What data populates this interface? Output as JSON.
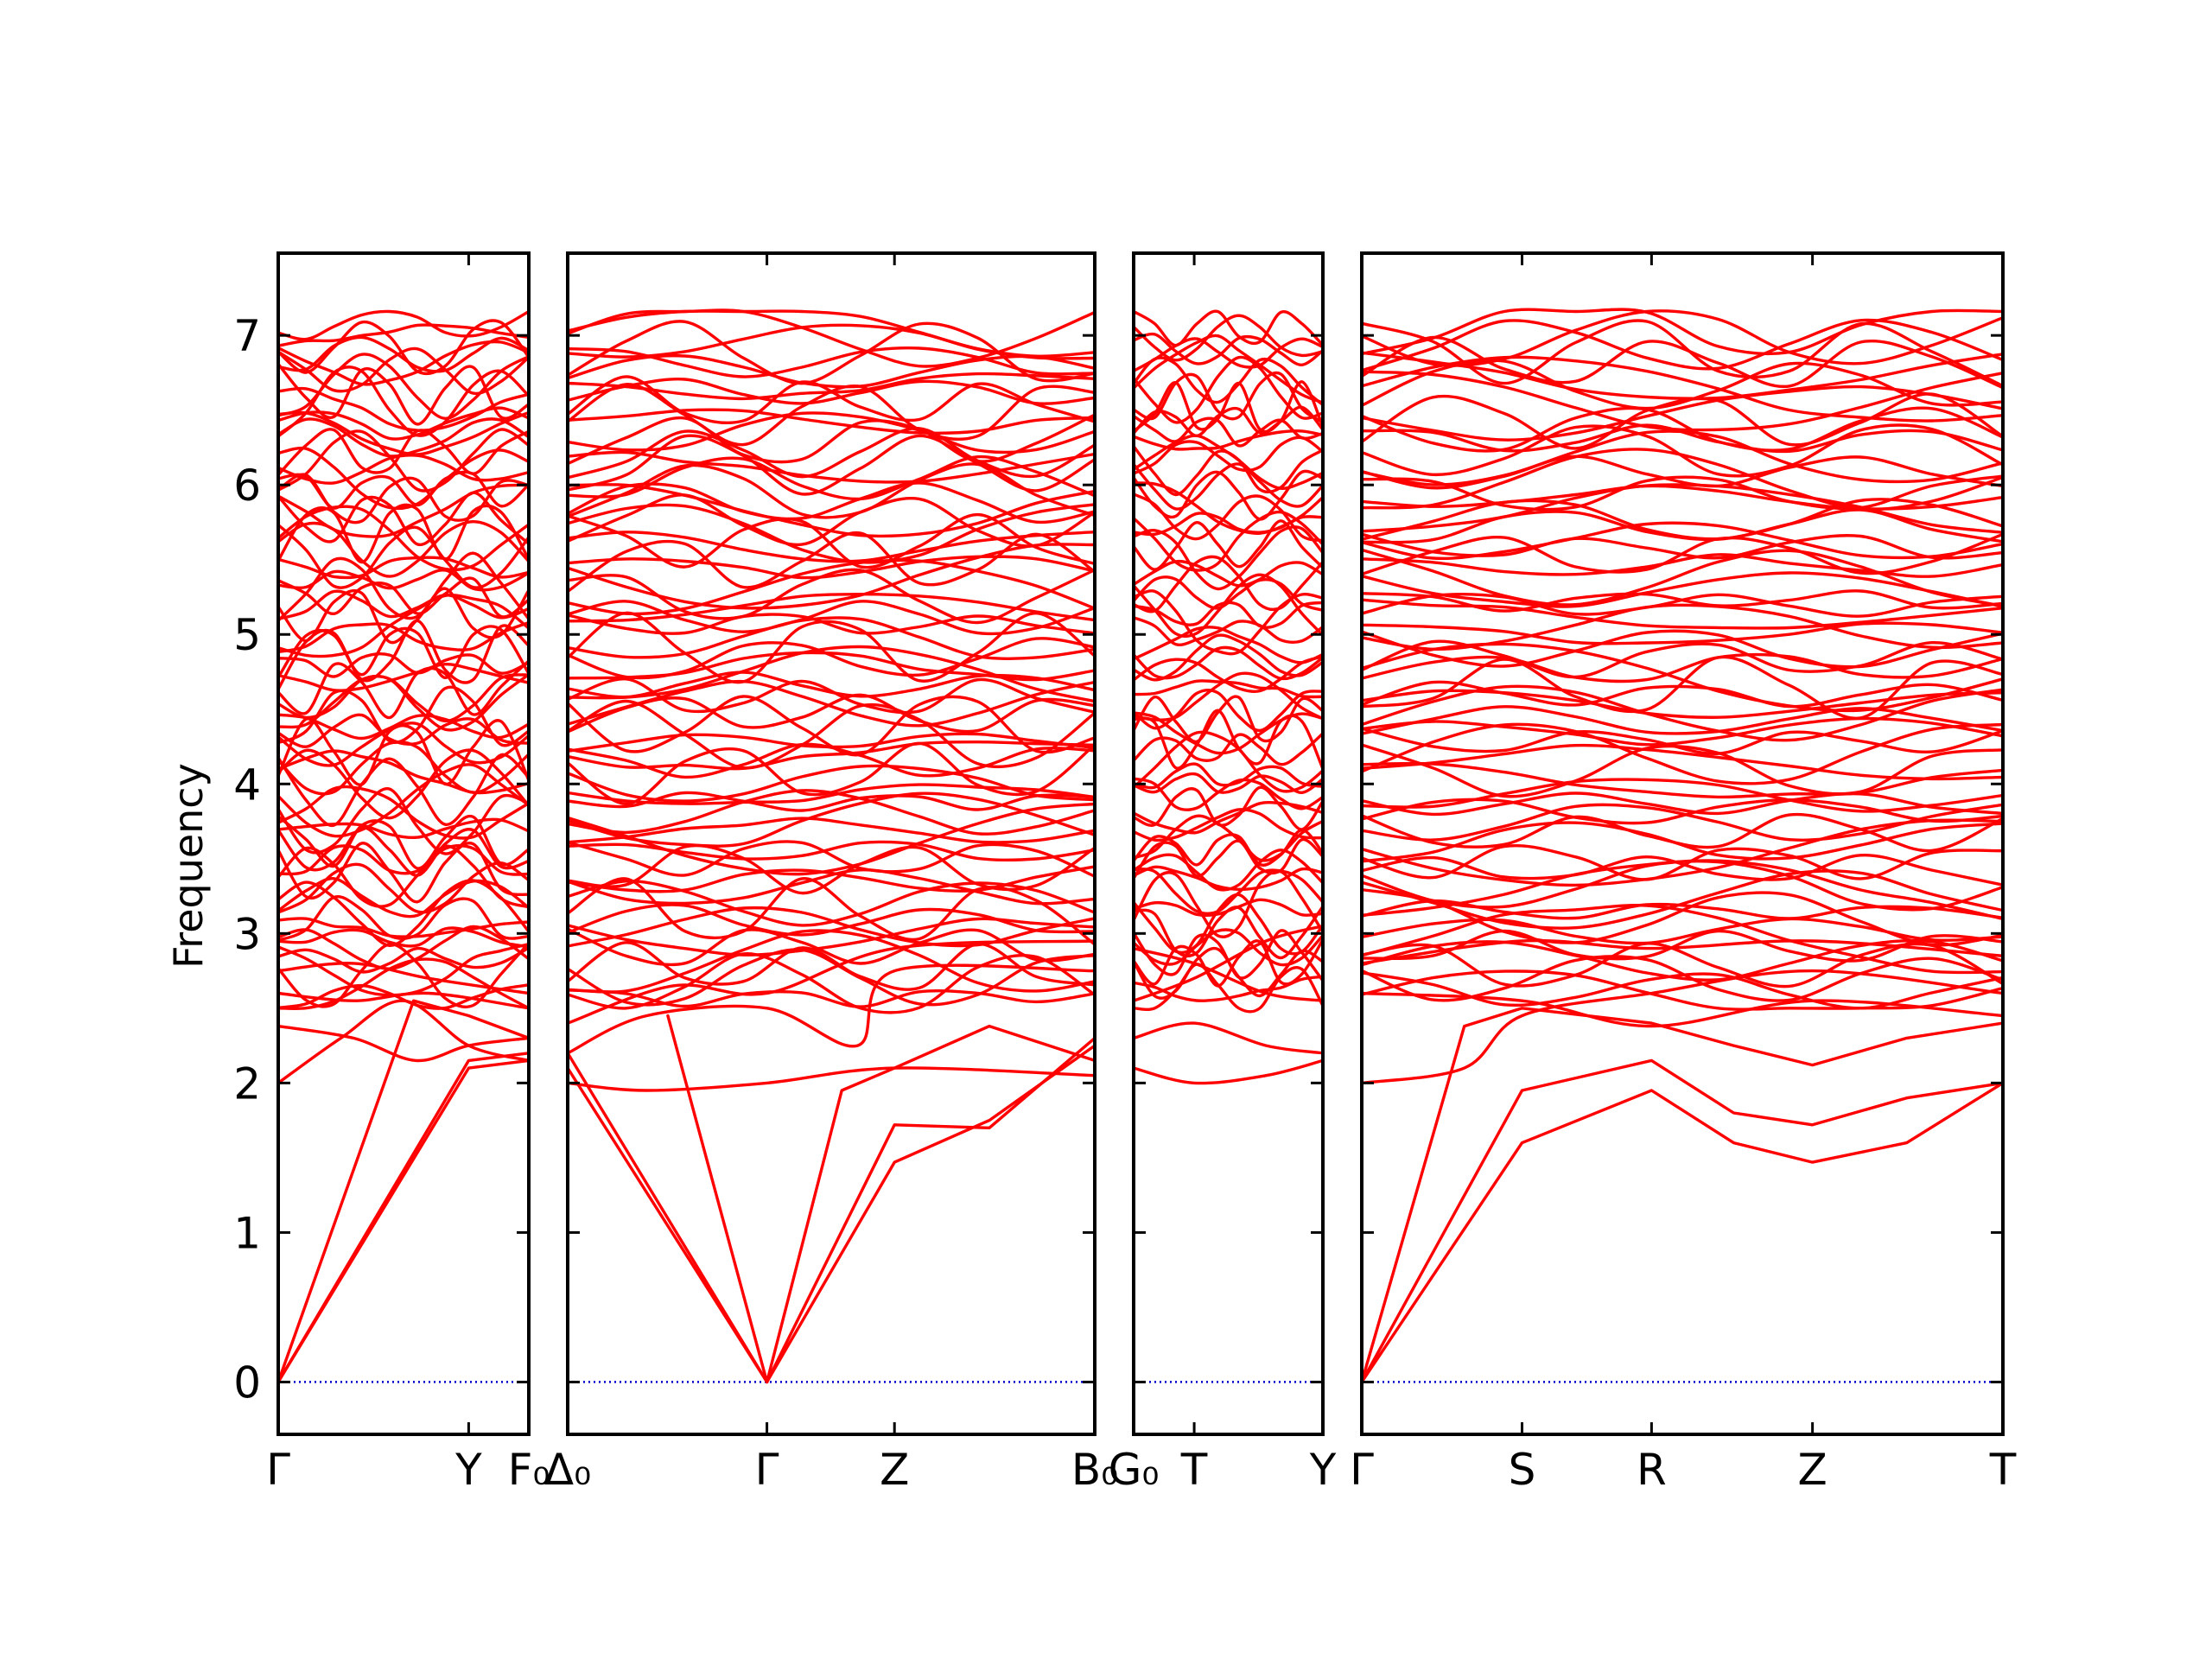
{
  "chart_data": {
    "type": "line",
    "title": "",
    "ylabel": "Frequency",
    "ylim": [
      -0.35,
      7.55
    ],
    "yticks": [
      "0",
      "1",
      "2",
      "3",
      "4",
      "5",
      "6",
      "7"
    ],
    "band_color": "#ff0000",
    "zero_line_color": "#0000cc",
    "panels": [
      {
        "name": "panel-1",
        "x_ticks": [
          {
            "label": "Γ",
            "pos": 0
          },
          {
            "label": "Y",
            "pos": 0.76
          },
          {
            "label": "F₀",
            "pos": 1.0
          }
        ],
        "bands": [
          {
            "kind": "acoustic",
            "x": [
              0,
              0.76,
              1.0
            ],
            "y": [
              0,
              2.1,
              2.15
            ]
          },
          {
            "kind": "acoustic",
            "x": [
              0,
              0.76,
              1.0
            ],
            "y": [
              0,
              2.15,
              2.2
            ]
          },
          {
            "kind": "acoustic",
            "x": [
              0,
              0.54,
              0.76,
              1.0
            ],
            "y": [
              0,
              2.55,
              2.45,
              2.3
            ]
          },
          {
            "kind": "optical",
            "x": [
              0,
              0.25,
              0.5,
              0.76,
              1.0
            ],
            "y": [
              2.0,
              2.3,
              2.55,
              2.25,
              2.15
            ]
          },
          {
            "kind": "optical",
            "x": [
              0,
              0.3,
              0.55,
              0.76,
              1.0
            ],
            "y": [
              2.38,
              2.3,
              2.15,
              2.25,
              2.3
            ]
          },
          {
            "kind": "optical",
            "x": [
              0,
              0.3,
              0.6,
              1.0
            ],
            "y": [
              2.6,
              2.55,
              2.6,
              2.5
            ]
          },
          {
            "kind": "optical",
            "x": [
              0,
              0.3,
              0.6,
              1.0
            ],
            "y": [
              2.75,
              2.8,
              2.7,
              2.6
            ]
          }
        ]
      },
      {
        "name": "panel-2",
        "x_ticks": [
          {
            "label": "Δ₀",
            "pos": 0
          },
          {
            "label": "Γ",
            "pos": 0.378
          },
          {
            "label": "Z",
            "pos": 0.62
          },
          {
            "label": "B₀",
            "pos": 1.0
          }
        ],
        "bands": [
          {
            "kind": "acoustic",
            "x": [
              0,
              0.378
            ],
            "y": [
              2.1,
              0
            ]
          },
          {
            "kind": "acoustic",
            "x": [
              0,
              0.378
            ],
            "y": [
              2.2,
              0
            ]
          },
          {
            "kind": "acoustic",
            "x": [
              0.19,
              0.378
            ],
            "y": [
              2.45,
              0
            ]
          },
          {
            "kind": "acoustic",
            "x": [
              0.378,
              0.62,
              0.8,
              1.0
            ],
            "y": [
              0,
              1.47,
              1.75,
              2.25
            ]
          },
          {
            "kind": "acoustic",
            "x": [
              0.378,
              0.62,
              0.8,
              1.0
            ],
            "y": [
              0,
              1.72,
              1.7,
              2.3
            ]
          },
          {
            "kind": "acoustic",
            "x": [
              0.378,
              0.52,
              0.62,
              0.8,
              1.0
            ],
            "y": [
              0,
              1.95,
              2.1,
              2.38,
              2.15
            ]
          },
          {
            "kind": "optical",
            "x": [
              0,
              0.15,
              0.378,
              0.55,
              0.62,
              1.0
            ],
            "y": [
              2.2,
              2.45,
              2.5,
              2.25,
              2.75,
              2.75
            ]
          },
          {
            "kind": "optical",
            "x": [
              0,
              0.15,
              0.378,
              0.62,
              1.0
            ],
            "y": [
              2.0,
              1.95,
              2.0,
              2.1,
              2.05
            ]
          },
          {
            "kind": "optical",
            "x": [
              0,
              0.2,
              0.378,
              0.62,
              1.0
            ],
            "y": [
              2.4,
              2.65,
              2.6,
              2.9,
              2.95
            ]
          }
        ]
      },
      {
        "name": "panel-3",
        "x_ticks": [
          {
            "label": "G₀",
            "pos": 0
          },
          {
            "label": "T",
            "pos": 0.32
          },
          {
            "label": "Y",
            "pos": 1.0
          }
        ],
        "bands": [
          {
            "kind": "optical",
            "x": [
              0,
              0.32,
              0.7,
              1.0
            ],
            "y": [
              2.1,
              2.0,
              2.05,
              2.15
            ]
          },
          {
            "kind": "optical",
            "x": [
              0,
              0.32,
              0.7,
              1.0
            ],
            "y": [
              2.3,
              2.4,
              2.25,
              2.2
            ]
          },
          {
            "kind": "optical",
            "x": [
              0,
              0.32,
              0.7,
              1.0
            ],
            "y": [
              2.55,
              2.7,
              2.95,
              3.05
            ]
          },
          {
            "kind": "optical",
            "x": [
              0,
              0.32,
              0.7,
              1.0
            ],
            "y": [
              2.9,
              2.8,
              2.6,
              2.55
            ]
          }
        ]
      },
      {
        "name": "panel-4",
        "x_ticks": [
          {
            "label": "Γ",
            "pos": 0
          },
          {
            "label": "S",
            "pos": 0.25
          },
          {
            "label": "R",
            "pos": 0.452
          },
          {
            "label": "Z",
            "pos": 0.703
          },
          {
            "label": "T",
            "pos": 1.0
          }
        ],
        "bands": [
          {
            "kind": "acoustic",
            "x": [
              0,
              0.25,
              0.452,
              0.58,
              0.703,
              0.85,
              1.0
            ],
            "y": [
              0,
              1.6,
              1.95,
              1.6,
              1.47,
              1.6,
              2.0
            ]
          },
          {
            "kind": "acoustic",
            "x": [
              0,
              0.25,
              0.452,
              0.58,
              0.703,
              0.85,
              1.0
            ],
            "y": [
              0,
              1.95,
              2.15,
              1.8,
              1.72,
              1.9,
              2.0
            ]
          },
          {
            "kind": "acoustic",
            "x": [
              0,
              0.16,
              0.25,
              0.452,
              0.58,
              0.703,
              0.85,
              1.0
            ],
            "y": [
              0,
              2.38,
              2.5,
              2.4,
              2.25,
              2.12,
              2.3,
              2.4
            ]
          },
          {
            "kind": "optical",
            "x": [
              0,
              0.16,
              0.25,
              0.452,
              0.703,
              1.0
            ],
            "y": [
              2.0,
              2.1,
              2.45,
              2.6,
              2.75,
              2.6
            ]
          },
          {
            "kind": "optical",
            "x": [
              0,
              0.25,
              0.452,
              0.703,
              1.0
            ],
            "y": [
              2.6,
              2.55,
              2.38,
              2.55,
              2.45
            ]
          },
          {
            "kind": "optical",
            "x": [
              0,
              0.25,
              0.452,
              0.703,
              1.0
            ],
            "y": [
              2.8,
              2.95,
              2.9,
              2.95,
              2.85
            ]
          }
        ]
      }
    ]
  }
}
